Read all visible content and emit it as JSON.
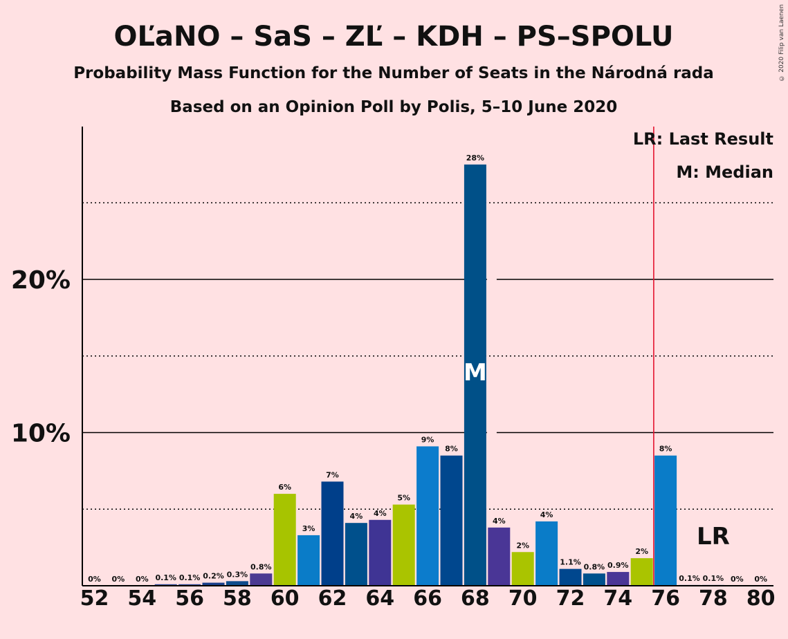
{
  "chart_data": {
    "type": "bar",
    "title": "OĽaNO – SaS – ZĽ – KDH – PS–SPOLU",
    "subtitle": "Probability Mass Function for the Number of Seats in the Národná rada",
    "subtitle2": "Based on an Opinion Poll by Polis, 5–10 June 2020",
    "copyright": "© 2020 Filip van Laenen",
    "xlabel": "",
    "ylabel": "",
    "x_tick_labels": [
      "52",
      "54",
      "56",
      "58",
      "60",
      "62",
      "64",
      "66",
      "68",
      "70",
      "72",
      "74",
      "76",
      "78",
      "80"
    ],
    "y_tick_labels": [
      "10%",
      "20%"
    ],
    "ylim": [
      0,
      30
    ],
    "grid": "dotted every 5%, solid at 10% and 20%",
    "legend": {
      "last_result": "LR: Last Result",
      "median": "M: Median",
      "placement": "top-right"
    },
    "last_result_seat": 75.5,
    "median_seat": 68,
    "median_marker": "M",
    "last_result_marker": "LR",
    "bars": [
      {
        "seat": 52,
        "value": 0,
        "label": "0%",
        "color": "#2f4b9a"
      },
      {
        "seat": 53,
        "value": 0,
        "label": "0%",
        "color": "#2f4b9a"
      },
      {
        "seat": 54,
        "value": 0,
        "label": "0%",
        "color": "#2f4b9a"
      },
      {
        "seat": 55,
        "value": 0.1,
        "label": "0.1%",
        "color": "#2f4b9a"
      },
      {
        "seat": 56,
        "value": 0.1,
        "label": "0.1%",
        "color": "#2f4b9a"
      },
      {
        "seat": 57,
        "value": 0.2,
        "label": "0.2%",
        "color": "#1a3f8a"
      },
      {
        "seat": 58,
        "value": 0.3,
        "label": "0.3%",
        "color": "#0e4c8c"
      },
      {
        "seat": 59,
        "value": 0.8,
        "label": "0.8%",
        "color": "#4b3a92"
      },
      {
        "seat": 60,
        "value": 6.0,
        "label": "6%",
        "color": "#a7c400"
      },
      {
        "seat": 61,
        "value": 3.3,
        "label": "3%",
        "color": "#0a7cc8"
      },
      {
        "seat": 62,
        "value": 6.8,
        "label": "7%",
        "color": "#003f8a"
      },
      {
        "seat": 63,
        "value": 4.1,
        "label": "4%",
        "color": "#00508c"
      },
      {
        "seat": 64,
        "value": 4.3,
        "label": "4%",
        "color": "#3f3494"
      },
      {
        "seat": 65,
        "value": 5.3,
        "label": "5%",
        "color": "#aac400"
      },
      {
        "seat": 66,
        "value": 9.1,
        "label": "9%",
        "color": "#0c7ccc"
      },
      {
        "seat": 67,
        "value": 8.5,
        "label": "8%",
        "color": "#00478e"
      },
      {
        "seat": 68,
        "value": 27.5,
        "label": "28%",
        "color": "#005088"
      },
      {
        "seat": 69,
        "value": 3.8,
        "label": "4%",
        "color": "#4a3696"
      },
      {
        "seat": 70,
        "value": 2.2,
        "label": "2%",
        "color": "#aac400"
      },
      {
        "seat": 71,
        "value": 4.2,
        "label": "4%",
        "color": "#0a7cc8"
      },
      {
        "seat": 72,
        "value": 1.1,
        "label": "1.1%",
        "color": "#00478e"
      },
      {
        "seat": 73,
        "value": 0.8,
        "label": "0.8%",
        "color": "#00508c"
      },
      {
        "seat": 74,
        "value": 0.9,
        "label": "0.9%",
        "color": "#4a3696"
      },
      {
        "seat": 75,
        "value": 1.8,
        "label": "2%",
        "color": "#aac400"
      },
      {
        "seat": 76,
        "value": 8.5,
        "label": "8%",
        "color": "#0a7cc8"
      },
      {
        "seat": 77,
        "value": 0.05,
        "label": "0.1%",
        "color": "#00478e"
      },
      {
        "seat": 78,
        "value": 0.05,
        "label": "0.1%",
        "color": "#00478e"
      },
      {
        "seat": 79,
        "value": 0,
        "label": "0%",
        "color": "#00478e"
      },
      {
        "seat": 80,
        "value": 0,
        "label": "0%",
        "color": "#00478e"
      }
    ]
  }
}
